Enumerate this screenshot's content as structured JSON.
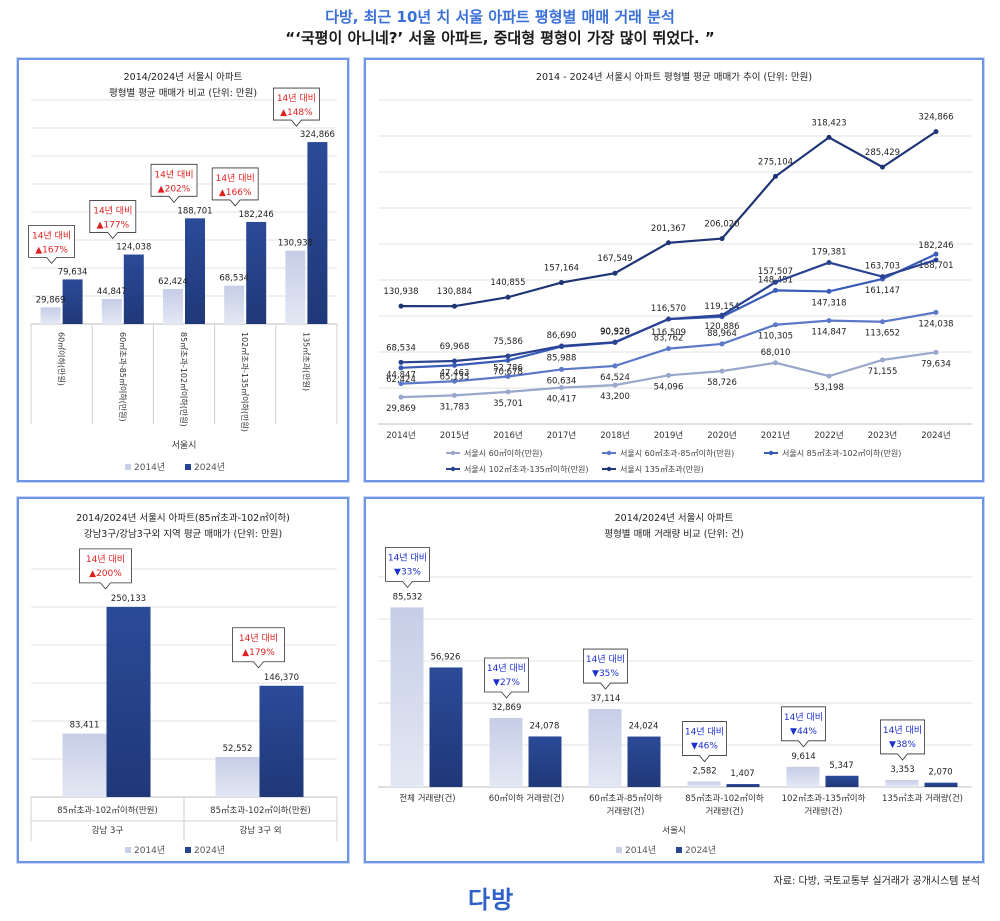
{
  "header": {
    "title": "다방, 최근 10년 치 서울 아파트 평형별 매매 거래 분석",
    "subtitle": "“‘국평이 아니네?’ 서울 아파트, 중대형 평형이 가장 많이 뛰었다. ”"
  },
  "footer": {
    "source": "자료: 다방, 국토교통부 실거래가 공개시스템 분석",
    "logo": "다방"
  },
  "legend": {
    "y2014": "2014년",
    "y2024": "2024년"
  },
  "colors": {
    "light": "#c9d0e8",
    "dark": "#27448f",
    "accent_red": "#e02020",
    "accent_blue": "#1a2fd0"
  },
  "chart_data": [
    {
      "id": "price-by-size",
      "type": "bar",
      "title": [
        "2014/2024년 서울시 아파트",
        "평형별 평균 매매가 비교 (단위: 만원)"
      ],
      "categories": [
        "60㎡이하(만원)",
        "60㎡초과-85㎡이하(만원)",
        "85㎡초과-102㎡이하(만원)",
        "102㎡초과-135㎡이하(만원)",
        "135㎡초과(만원)"
      ],
      "group_label": "서울시",
      "series": [
        {
          "name": "2014년",
          "values": [
            29869,
            44847,
            62424,
            68534,
            130938
          ]
        },
        {
          "name": "2024년",
          "values": [
            79634,
            124038,
            188701,
            182246,
            324866
          ]
        }
      ],
      "callouts": [
        {
          "line1": "14년 대비",
          "line2": "▲167%"
        },
        {
          "line1": "14년 대비",
          "line2": "▲177%"
        },
        {
          "line1": "14년 대비",
          "line2": "▲202%"
        },
        {
          "line1": "14년 대비",
          "line2": "▲166%"
        },
        {
          "line1": "14년 대비",
          "line2": "▲148%"
        }
      ],
      "ylim": [
        0,
        400000
      ]
    },
    {
      "id": "price-trend",
      "type": "line",
      "title": "2014 - 2024년 서울시 아파트 평형별 평균 매매가 추이 (단위: 만원)",
      "x": [
        "2014년",
        "2015년",
        "2016년",
        "2017년",
        "2018년",
        "2019년",
        "2020년",
        "2021년",
        "2022년",
        "2023년",
        "2024년"
      ],
      "series": [
        {
          "name": "서울시 60㎡이하(만원)",
          "color": "#9aa7cc",
          "values": [
            29869,
            31783,
            35701,
            40417,
            43200,
            54096,
            58726,
            68010,
            53198,
            71155,
            79634
          ]
        },
        {
          "name": "서울시 60㎡초과-85㎡이하(만원)",
          "color": "#5b78c9",
          "values": [
            44847,
            47463,
            52786,
            60634,
            64524,
            83762,
            88964,
            110305,
            114847,
            113652,
            124038
          ]
        },
        {
          "name": "서울시 85㎡초과-102㎡이하(만원)",
          "color": "#3a5cb8",
          "values": [
            62424,
            65135,
            70678,
            85988,
            90526,
            116509,
            119154,
            148451,
            147318,
            161147,
            188701
          ]
        },
        {
          "name": "서울시 102㎡초과-135㎡이하(만원)",
          "color": "#2a4292",
          "values": [
            68534,
            69968,
            75586,
            86690,
            90920,
            116570,
            120886,
            157507,
            179381,
            163703,
            182246
          ]
        },
        {
          "name": "서울시 135㎡초과(만원)",
          "color": "#1f3576",
          "values": [
            130938,
            130884,
            140855,
            157164,
            167549,
            201367,
            206020,
            275104,
            318423,
            285429,
            324866
          ]
        }
      ],
      "ylim": [
        0,
        360000
      ]
    },
    {
      "id": "gangnam-price",
      "type": "bar",
      "title": [
        "2014/2024년 서울시 아파트(85㎡초과-102㎡이하)",
        "강남3구/강남3구외 지역 평균 매매가 (단위: 만원)"
      ],
      "categories": [
        "85㎡초과-102㎡이하(만원)",
        "85㎡초과-102㎡이하(만원)"
      ],
      "group_labels": [
        "강남 3구",
        "강남 3구 외"
      ],
      "series": [
        {
          "name": "2014년",
          "values": [
            83411,
            52552
          ]
        },
        {
          "name": "2024년",
          "values": [
            250133,
            146370
          ]
        }
      ],
      "callouts": [
        {
          "line1": "14년 대비",
          "line2": "▲200%"
        },
        {
          "line1": "14년 대비",
          "line2": "▲179%"
        }
      ],
      "ylim": [
        0,
        300000
      ]
    },
    {
      "id": "volume-by-size",
      "type": "bar",
      "title": [
        "2014/2024년 서울시 아파트",
        "평형별 매매 거래량 비교 (단위: 건)"
      ],
      "categories": [
        [
          "전체 거래량(건)"
        ],
        [
          "60㎡이하 거래량(건)"
        ],
        [
          "60㎡초과-85㎡이하",
          "거래량(건)"
        ],
        [
          "85㎡초과-102㎡이하",
          "거래량(건)"
        ],
        [
          "102㎡초과-135㎡이하",
          "거래량(건)"
        ],
        [
          "135㎡초과 거래량(건)"
        ]
      ],
      "group_label": "서울시",
      "series": [
        {
          "name": "2014년",
          "values": [
            85532,
            32869,
            37114,
            2582,
            9614,
            3353
          ]
        },
        {
          "name": "2024년",
          "values": [
            56926,
            24078,
            24024,
            1407,
            5347,
            2070
          ]
        }
      ],
      "callouts": [
        {
          "line1": "14년 대비",
          "line2": "▼33%"
        },
        {
          "line1": "14년 대비",
          "line2": "▼27%"
        },
        {
          "line1": "14년 대비",
          "line2": "▼35%"
        },
        {
          "line1": "14년 대비",
          "line2": "▼46%"
        },
        {
          "line1": "14년 대비",
          "line2": "▼44%"
        },
        {
          "line1": "14년 대비",
          "line2": "▼38%"
        }
      ],
      "ylim": [
        0,
        100000
      ]
    }
  ]
}
